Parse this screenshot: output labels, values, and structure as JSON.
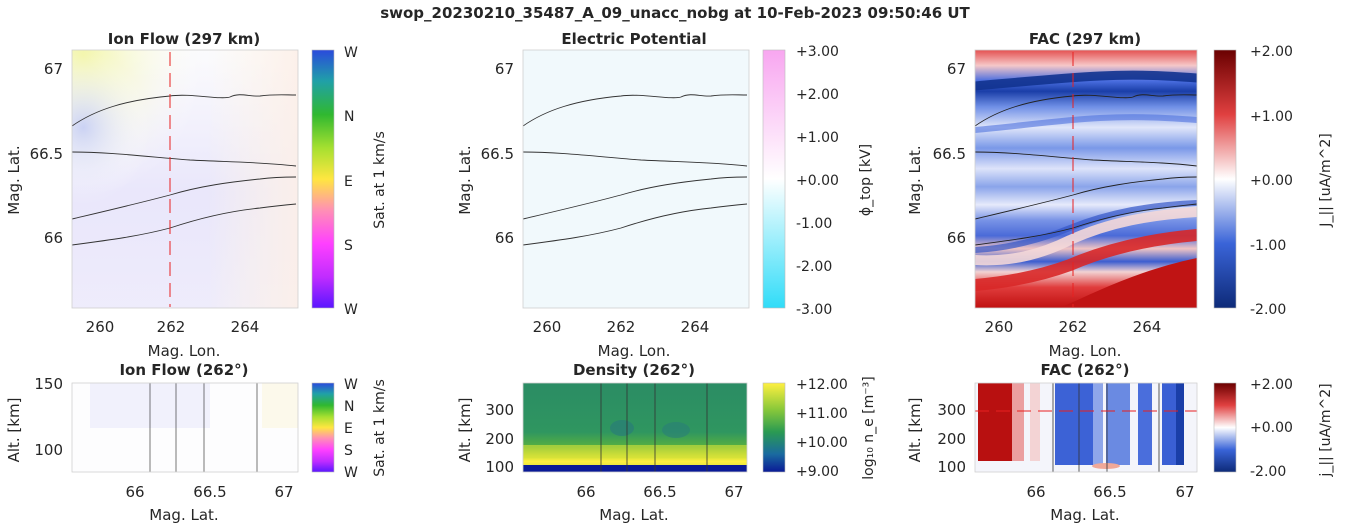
{
  "figure": {
    "suptitle": "swop_20230210_35487_A_09_unacc_nobg at 10-Feb-2023 09:50:46 UT",
    "panels": {
      "ion_flow_map": {
        "title": "Ion Flow (297 km)",
        "xlabel": "Mag. Lon.",
        "ylabel": "Mag. Lat.",
        "colorbar_label": "Sat. at 1 km/s",
        "colorbar_ticks": [
          "W",
          "N",
          "E",
          "S",
          "W"
        ],
        "colors": [
          "#5a16ff",
          "#ff40ff",
          "#ffe640",
          "#40c030",
          "#2a4adc"
        ]
      },
      "potential_map": {
        "title": "Electric Potential",
        "xlabel": "Mag. Lon.",
        "ylabel": "Mag. Lat.",
        "colorbar_label": "ϕ_top [kV]",
        "colorbar_ticks": [
          "+3.00",
          "+2.00",
          "+1.00",
          "+0.00",
          "-1.00",
          "-2.00",
          "-3.00"
        ],
        "colors": [
          "#30dcf8",
          "#ffffff",
          "#f8a6f0"
        ]
      },
      "fac_map": {
        "title": "FAC (297 km)",
        "xlabel": "Mag. Lon.",
        "ylabel": "Mag. Lat.",
        "colorbar_label": "J_|| [uA/m^2]",
        "colorbar_ticks": [
          "+2.00",
          "+1.00",
          "+0.00",
          "-1.00",
          "-2.00"
        ],
        "colors": [
          "#0d2a78",
          "#3a64d8",
          "#ffffff",
          "#e04040",
          "#6a0000"
        ]
      },
      "ion_flow_profile": {
        "title": "Ion Flow (262°)",
        "xlabel": "Mag. Lat.",
        "ylabel": "Alt. [km]",
        "colorbar_label": "Sat. at 1 km/s",
        "colorbar_ticks": [
          "W",
          "N",
          "E",
          "S",
          "W"
        ]
      },
      "density_profile": {
        "title": "Density (262°)",
        "xlabel": "Mag. Lat.",
        "ylabel": "Alt. [km]",
        "colorbar_label": "log₁₀ n_e [m⁻³]",
        "colorbar_ticks": [
          "+12.00",
          "+11.00",
          "+10.00",
          "+9.00"
        ],
        "colors": [
          "#0a1a96",
          "#2a9a52",
          "#fff040"
        ]
      },
      "fac_profile": {
        "title": "FAC (262°)",
        "xlabel": "Mag. Lat.",
        "ylabel": "Alt. [km]",
        "colorbar_label": "j_|| [uA/m^2]",
        "colorbar_ticks": [
          "+2.00",
          "+0.00",
          "-2.00"
        ]
      }
    }
  },
  "chart_data": [
    {
      "type": "heatmap",
      "title": "Ion Flow (297 km)",
      "xlabel": "Mag. Lon.",
      "ylabel": "Mag. Lat.",
      "xlim": [
        259.4,
        265.4
      ],
      "ylim": [
        65.6,
        67.15
      ],
      "x_ticks": [
        260,
        262,
        264
      ],
      "y_ticks": [
        66,
        66.5,
        67
      ],
      "x_tick_labels": [
        "260",
        "262",
        "264"
      ],
      "y_tick_labels": [
        "66",
        "66.5",
        "67"
      ],
      "marker_lon": 262
    },
    {
      "type": "heatmap",
      "title": "Electric Potential",
      "xlabel": "Mag. Lon.",
      "ylabel": "Mag. Lat.",
      "xlim": [
        259.4,
        265.4
      ],
      "ylim": [
        65.6,
        67.15
      ],
      "x_ticks": [
        260,
        262,
        264
      ],
      "y_ticks": [
        66,
        66.5,
        67
      ],
      "x_tick_labels": [
        "260",
        "262",
        "264"
      ],
      "y_tick_labels": [
        "66",
        "66.5",
        "67"
      ],
      "clim": [
        -3,
        3
      ]
    },
    {
      "type": "heatmap",
      "title": "FAC (297 km)",
      "xlabel": "Mag. Lon.",
      "ylabel": "Mag. Lat.",
      "xlim": [
        259.4,
        265.4
      ],
      "ylim": [
        65.6,
        67.15
      ],
      "x_ticks": [
        260,
        262,
        264
      ],
      "y_ticks": [
        66,
        66.5,
        67
      ],
      "x_tick_labels": [
        "260",
        "262",
        "264"
      ],
      "y_tick_labels": [
        "66",
        "66.5",
        "67"
      ],
      "clim": [
        -2,
        2
      ],
      "marker_lon": 262
    },
    {
      "type": "heatmap",
      "title": "Ion Flow (262°)",
      "xlabel": "Mag. Lat.",
      "ylabel": "Alt. [km]",
      "xlim": [
        65.6,
        67.1
      ],
      "ylim": [
        80,
        150
      ],
      "x_ticks": [
        66,
        66.5,
        67
      ],
      "y_ticks": [
        100,
        150
      ],
      "x_tick_labels": [
        "66",
        "66.5",
        "67"
      ],
      "y_tick_labels": [
        "100",
        "150"
      ],
      "boundaries_lat": [
        66.1,
        66.28,
        66.47,
        66.82
      ]
    },
    {
      "type": "heatmap",
      "title": "Density (262°)",
      "xlabel": "Mag. Lat.",
      "ylabel": "Alt. [km]",
      "xlim": [
        65.6,
        67.1
      ],
      "ylim": [
        80,
        390
      ],
      "x_ticks": [
        66,
        66.5,
        67
      ],
      "y_ticks": [
        100,
        200,
        300
      ],
      "x_tick_labels": [
        "66",
        "66.5",
        "67"
      ],
      "y_tick_labels": [
        "100",
        "200",
        "300"
      ],
      "clim": [
        9,
        12
      ],
      "boundaries_lat": [
        66.1,
        66.28,
        66.47,
        66.82
      ]
    },
    {
      "type": "heatmap",
      "title": "FAC (262°)",
      "xlabel": "Mag. Lat.",
      "ylabel": "Alt. [km]",
      "xlim": [
        65.6,
        67.1
      ],
      "ylim": [
        80,
        390
      ],
      "x_ticks": [
        66,
        66.5,
        67
      ],
      "y_ticks": [
        100,
        200,
        300
      ],
      "x_tick_labels": [
        "66",
        "66.5",
        "67"
      ],
      "y_tick_labels": [
        "100",
        "200",
        "300"
      ],
      "clim": [
        -2,
        2
      ],
      "boundaries_lat": [
        66.1,
        66.28,
        66.47,
        66.82
      ],
      "marker_alt": 300
    }
  ]
}
